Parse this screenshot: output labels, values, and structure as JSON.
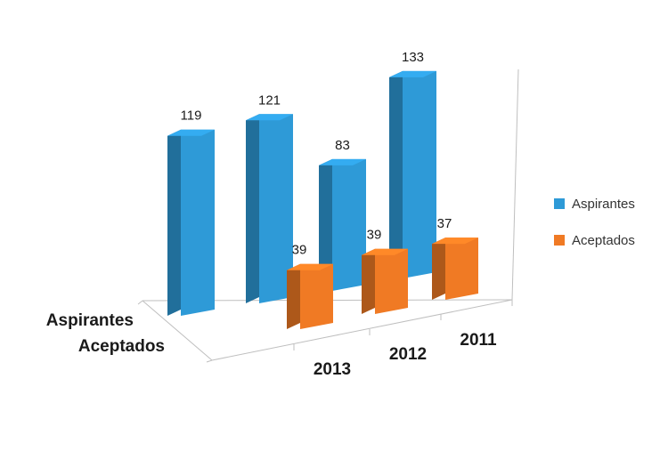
{
  "chart_data": {
    "type": "bar",
    "subtype": "3d-column",
    "title": "",
    "categories": [
      "2013",
      "2012",
      "2011"
    ],
    "series": [
      {
        "name": "Aspirantes",
        "values": [
          119,
          121,
          133
        ],
        "secondary_value": 83,
        "color": "#2e9ad7"
      },
      {
        "name": "Aceptados",
        "values": [
          39,
          39,
          37
        ],
        "color": "#f07a24"
      }
    ],
    "bar_labels": {
      "aspirantes": [
        "119",
        "121",
        "83",
        "133"
      ],
      "aceptados": [
        "39",
        "39",
        "37"
      ]
    },
    "depth_axis_labels": [
      "Aspirantes",
      "Aceptados"
    ],
    "grid": false,
    "legend_position": "right"
  },
  "legend": {
    "items": [
      {
        "label": "Aspirantes",
        "color": "#2e9ad7"
      },
      {
        "label": "Aceptados",
        "color": "#f07a24"
      }
    ]
  }
}
